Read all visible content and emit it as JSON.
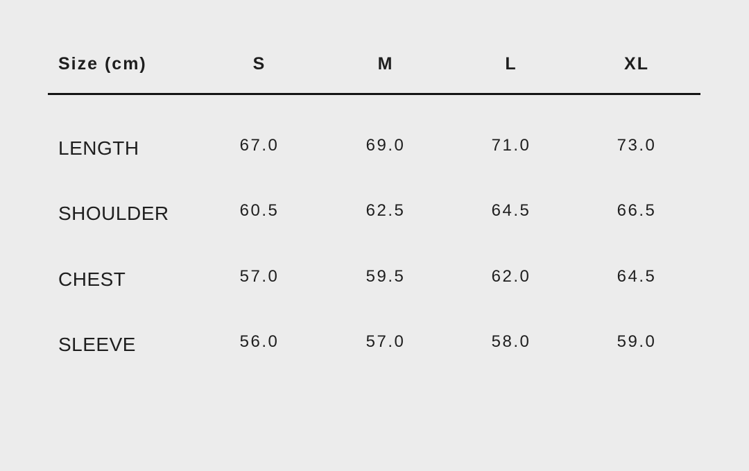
{
  "table": {
    "header": "Size (cm)",
    "columns": [
      "S",
      "M",
      "L",
      "XL"
    ],
    "rows": [
      {
        "label": "LENGTH",
        "values": [
          "67.0",
          "69.0",
          "71.0",
          "73.0"
        ]
      },
      {
        "label": "SHOULDER",
        "values": [
          "60.5",
          "62.5",
          "64.5",
          "66.5"
        ]
      },
      {
        "label": "CHEST",
        "values": [
          "57.0",
          "59.5",
          "62.0",
          "64.5"
        ]
      },
      {
        "label": "SLEEVE",
        "values": [
          "56.0",
          "57.0",
          "58.0",
          "59.0"
        ]
      }
    ]
  }
}
